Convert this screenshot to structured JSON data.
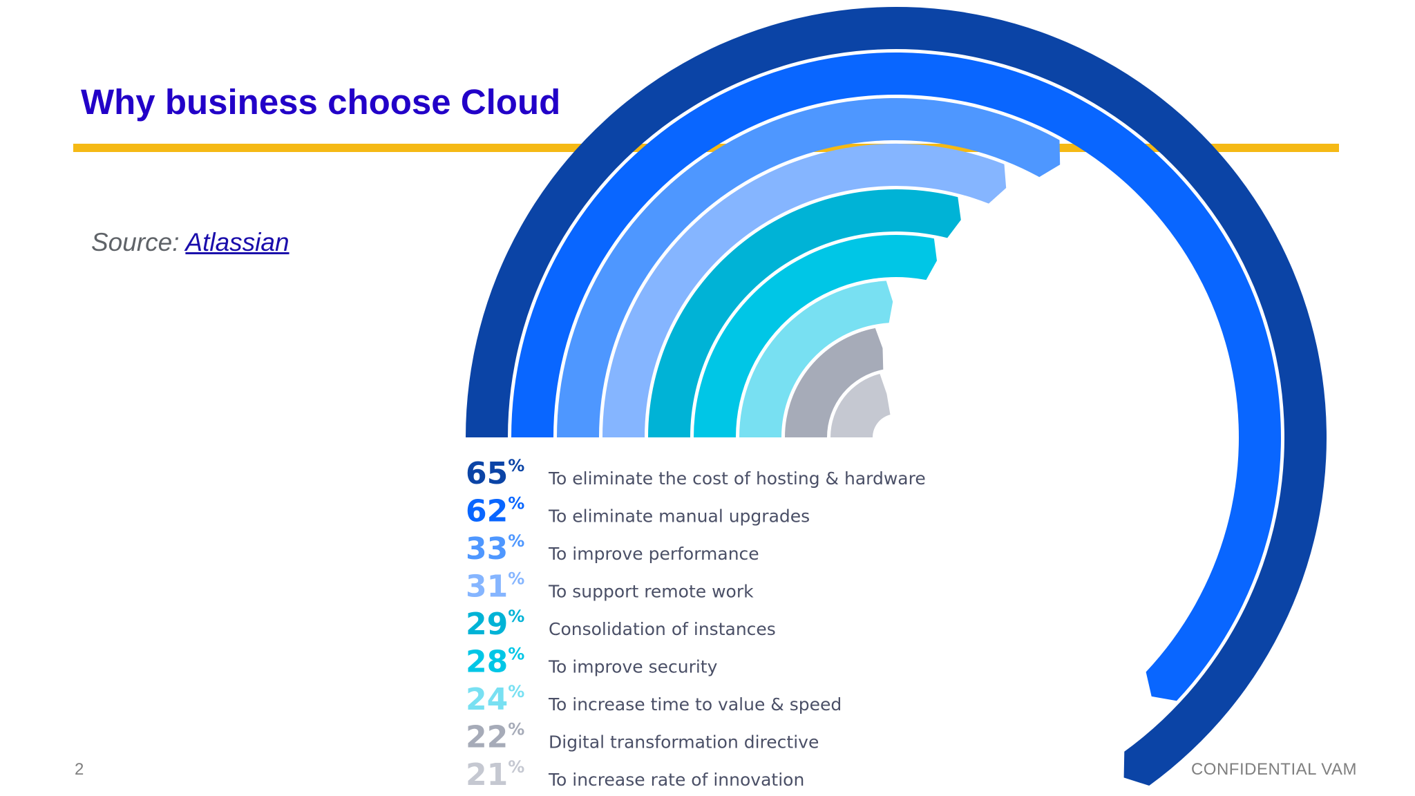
{
  "slide": {
    "title": "Why business choose Cloud",
    "source_prefix": "Source: ",
    "source_link": "Atlassian",
    "page_number": "2",
    "footer": "CONFIDENTIAL VAM",
    "accent_color": "#f5b915",
    "title_color": "#2200c8"
  },
  "chart_data": {
    "type": "radial-bar",
    "title": "Why business choose Cloud",
    "unit": "%",
    "series": [
      {
        "value": 65,
        "label": "To eliminate the cost of hosting & hardware",
        "color": "#0b44a6"
      },
      {
        "value": 62,
        "label": "To eliminate manual upgrades",
        "color": "#0966ff"
      },
      {
        "value": 33,
        "label": "To improve performance",
        "color": "#4e97ff"
      },
      {
        "value": 31,
        "label": "To support remote work",
        "color": "#85b5ff"
      },
      {
        "value": 29,
        "label": "Consolidation of instances",
        "color": "#00b3d6"
      },
      {
        "value": 28,
        "label": "To improve security",
        "color": "#00c6e6"
      },
      {
        "value": 24,
        "label": "To increase time to value & speed",
        "color": "#78e0f2"
      },
      {
        "value": 22,
        "label": "Digital transformation directive",
        "color": "#a6abb8"
      },
      {
        "value": 21,
        "label": "To increase rate of innovation",
        "color": "#c5c8d1"
      }
    ]
  }
}
